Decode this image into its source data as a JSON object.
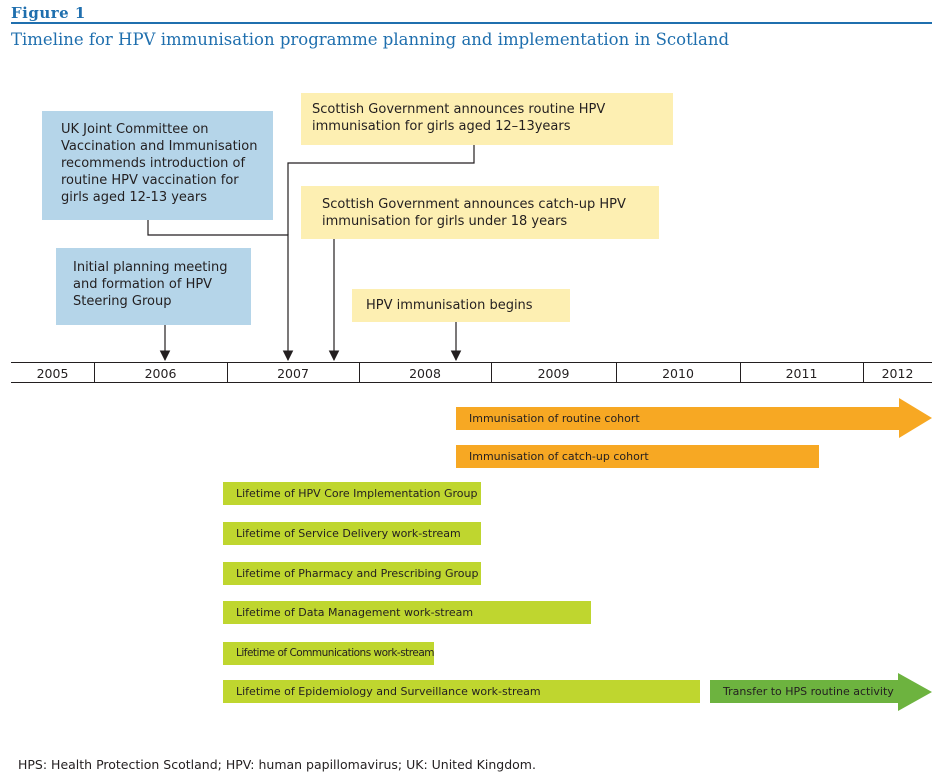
{
  "figure_label": "Figure 1",
  "figure_title": "Timeline for HPV immunisation programme planning and implementation in Scotland",
  "events": {
    "jcvi": "UK Joint Committee on Vaccination and Immunisation recommends introduction of routine HPV vaccination for girls aged 12-13 years",
    "routine_announce": "Scottish Government announces routine HPV immunisation for girls aged 12–13years",
    "catchup_announce": "Scottish Government announces catch-up  HPV immunisation for girls under 18 years",
    "planning": "Initial planning meeting and formation of HPV Steering Group",
    "begins": "HPV immunisation begins"
  },
  "years": [
    "2005",
    "2006",
    "2007",
    "2008",
    "2009",
    "2010",
    "2011",
    "2012"
  ],
  "bars": {
    "routine_cohort": "Immunisation of routine cohort",
    "catchup_cohort": "Immunisation of catch-up cohort",
    "core_group": "Lifetime of HPV Core Implementation Group",
    "service_delivery": "Lifetime of Service Delivery work-stream",
    "pharmacy": "Lifetime of Pharmacy and Prescribing Group",
    "data_mgmt": "Lifetime of Data Management work-stream",
    "communications": "Lifetime of Communications work-stream",
    "epidemiology": "Lifetime of Epidemiology and Surveillance work-stream",
    "transfer": "Transfer to HPS routine activity"
  },
  "colors": {
    "accent": "#1f6fae",
    "blue_box": "#b5d5e9",
    "yellow_box": "#fdefb2",
    "green_bar": "#bfd62f",
    "orange_bar": "#f7a823",
    "dark_green_arrow": "#6db33f"
  },
  "footnote": "HPS: Health Protection Scotland; HPV: human papillomavirus; UK: United Kingdom."
}
